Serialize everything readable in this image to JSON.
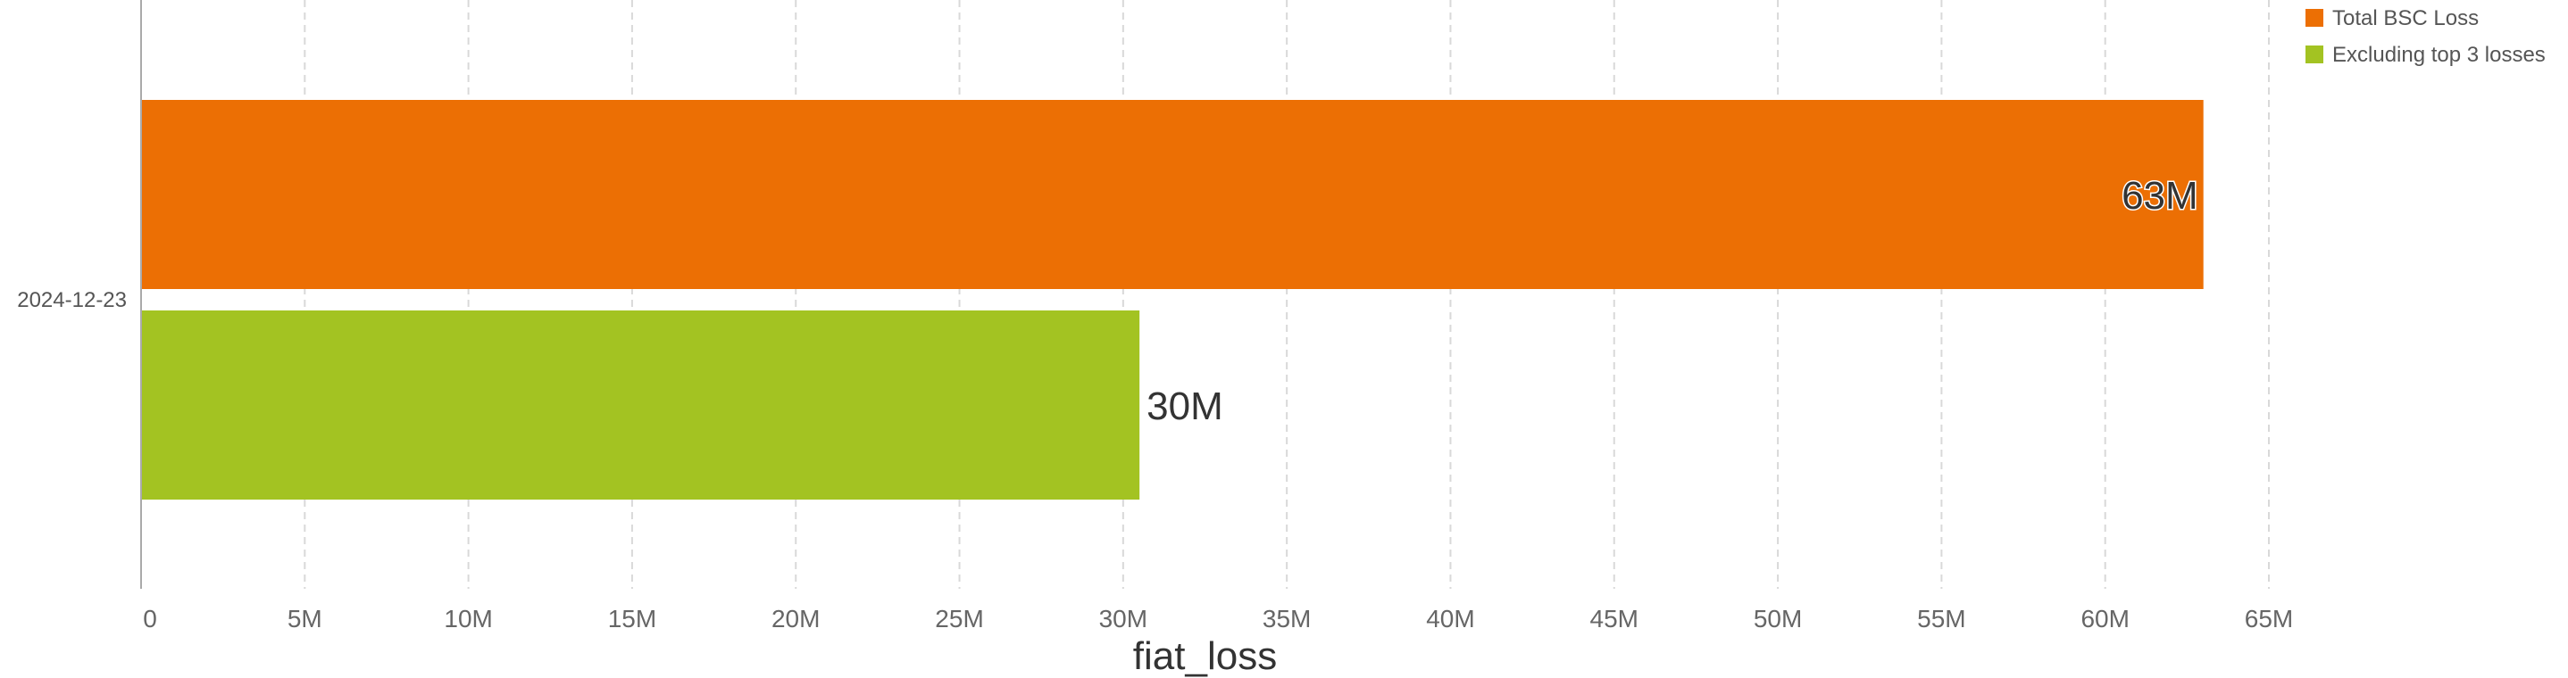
{
  "chart_data": {
    "type": "bar",
    "orientation": "horizontal",
    "categories": [
      "2024-12-23"
    ],
    "series": [
      {
        "name": "Total BSC Loss",
        "values": [
          63000000
        ],
        "value_label": "63M",
        "color": "#EC6F04"
      },
      {
        "name": "Excluding top 3 losses",
        "values": [
          30500000
        ],
        "value_label": "30M",
        "color": "#A3C322"
      }
    ],
    "xlabel": "fiat_loss",
    "ylabel": "",
    "xlim": [
      0,
      65000000
    ],
    "xticks": [
      {
        "value": 0,
        "label": "0"
      },
      {
        "value": 5000000,
        "label": "5M"
      },
      {
        "value": 10000000,
        "label": "10M"
      },
      {
        "value": 15000000,
        "label": "15M"
      },
      {
        "value": 20000000,
        "label": "20M"
      },
      {
        "value": 25000000,
        "label": "25M"
      },
      {
        "value": 30000000,
        "label": "30M"
      },
      {
        "value": 35000000,
        "label": "35M"
      },
      {
        "value": 40000000,
        "label": "40M"
      },
      {
        "value": 45000000,
        "label": "45M"
      },
      {
        "value": 50000000,
        "label": "50M"
      },
      {
        "value": 55000000,
        "label": "55M"
      },
      {
        "value": 60000000,
        "label": "60M"
      },
      {
        "value": 65000000,
        "label": "65M"
      }
    ],
    "grid": "vertical-dashed",
    "legend_position": "top-right"
  }
}
